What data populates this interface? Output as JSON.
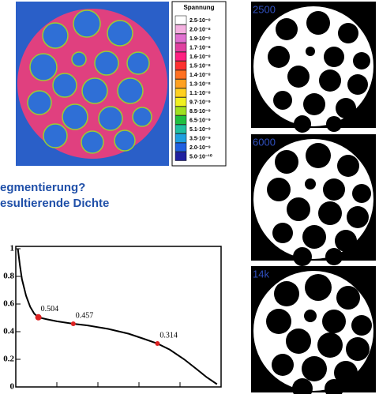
{
  "heatmap": {
    "legend_title": "Spannung",
    "legend_labels": [
      "2.5·10⁻⁸",
      "2.0·10⁻⁸",
      "1.9·10⁻⁸",
      "1.7·10⁻⁸",
      "1.6·10⁻⁸",
      "1.5·10⁻⁸",
      "1.4·10⁻⁸",
      "1.3·10⁻⁸",
      "1.1·10⁻⁸",
      "9.7·10⁻⁹",
      "8.5·10⁻⁹",
      "6.5·10⁻⁹",
      "5.1·10⁻⁹",
      "3.5·10⁻⁹",
      "2.0·10⁻⁹",
      "5.0·10⁻¹⁰"
    ]
  },
  "questions": [
    "egmentierung?",
    "esultierende Dichte"
  ],
  "images": [
    {
      "label": "2500"
    },
    {
      "label": "6000"
    },
    {
      "label": "14k"
    }
  ],
  "chart_data": {
    "type": "line",
    "xlim": [
      0,
      100
    ],
    "ylim": [
      0,
      1
    ],
    "yticks": [
      0,
      0.2,
      0.4,
      0.6,
      0.8,
      1
    ],
    "curve": {
      "color": "#000000",
      "x": [
        1,
        2,
        3,
        5,
        7,
        9,
        11,
        15,
        20,
        28,
        35,
        45,
        55,
        62,
        69,
        75,
        82,
        88,
        93,
        98
      ],
      "values": [
        1.0,
        0.88,
        0.78,
        0.66,
        0.58,
        0.53,
        0.504,
        0.49,
        0.475,
        0.457,
        0.445,
        0.42,
        0.385,
        0.35,
        0.314,
        0.27,
        0.2,
        0.13,
        0.07,
        0.02
      ]
    },
    "points": {
      "color": "#dd2222",
      "x": [
        11,
        28,
        69
      ],
      "values": [
        0.504,
        0.457,
        0.314
      ]
    }
  }
}
